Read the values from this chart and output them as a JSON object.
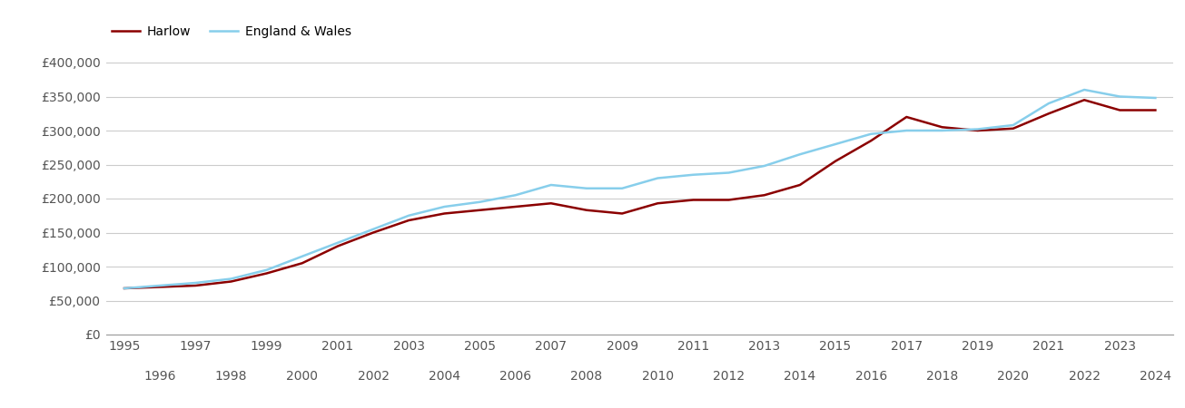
{
  "harlow_years": [
    1995,
    1996,
    1997,
    1998,
    1999,
    2000,
    2001,
    2002,
    2003,
    2004,
    2005,
    2006,
    2007,
    2008,
    2009,
    2010,
    2011,
    2012,
    2013,
    2014,
    2015,
    2016,
    2017,
    2018,
    2019,
    2020,
    2021,
    2022,
    2023,
    2024
  ],
  "harlow_values": [
    68000,
    70000,
    72000,
    78000,
    90000,
    105000,
    130000,
    150000,
    168000,
    178000,
    183000,
    188000,
    193000,
    183000,
    178000,
    193000,
    198000,
    198000,
    205000,
    220000,
    255000,
    285000,
    320000,
    305000,
    300000,
    303000,
    325000,
    345000,
    330000,
    330000
  ],
  "england_years": [
    1995,
    1996,
    1997,
    1998,
    1999,
    2000,
    2001,
    2002,
    2003,
    2004,
    2005,
    2006,
    2007,
    2008,
    2009,
    2010,
    2011,
    2012,
    2013,
    2014,
    2015,
    2016,
    2017,
    2018,
    2019,
    2020,
    2021,
    2022,
    2023,
    2024
  ],
  "england_values": [
    68000,
    72000,
    76000,
    82000,
    95000,
    115000,
    135000,
    155000,
    175000,
    188000,
    195000,
    205000,
    220000,
    215000,
    215000,
    230000,
    235000,
    238000,
    248000,
    265000,
    280000,
    295000,
    300000,
    300000,
    302000,
    308000,
    340000,
    360000,
    350000,
    348000
  ],
  "harlow_color": "#8B0000",
  "england_color": "#87CEEB",
  "background_color": "#ffffff",
  "grid_color": "#cccccc",
  "ylim": [
    0,
    420000
  ],
  "yticks": [
    0,
    50000,
    100000,
    150000,
    200000,
    250000,
    300000,
    350000,
    400000
  ],
  "legend_harlow": "Harlow",
  "legend_england": "England & Wales",
  "line_width": 1.8,
  "tick_fontsize": 10,
  "tick_color": "#555555"
}
